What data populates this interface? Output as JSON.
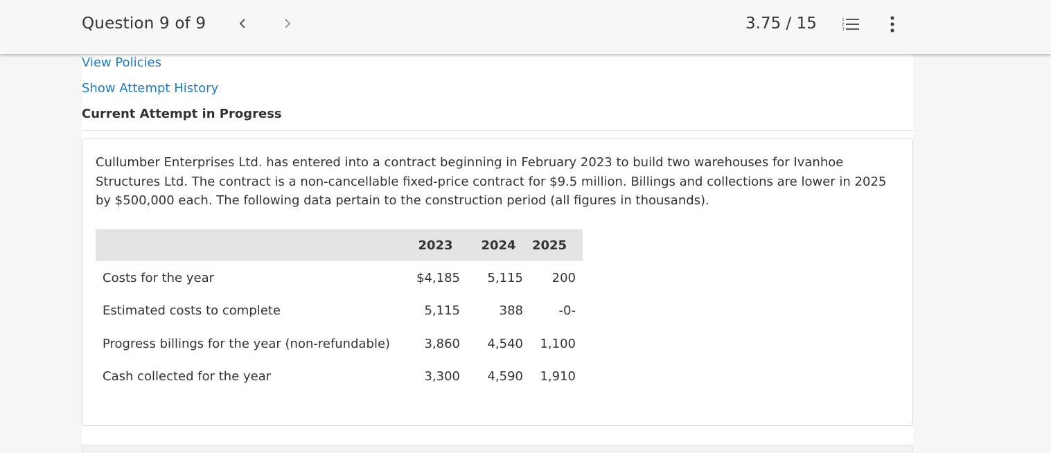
{
  "header": {
    "question_label": "Question 9 of 9",
    "score": "3.75 / 15",
    "prev_icon": "chevron-left-icon",
    "next_icon": "chevron-right-icon",
    "list_icon": "numbered-list-icon",
    "menu_icon": "vertical-ellipsis-icon"
  },
  "links": {
    "view_policies": "View Policies",
    "show_attempt_history": "Show Attempt History"
  },
  "attempt_status": "Current Attempt in Progress",
  "question": {
    "text": "Cullumber Enterprises Ltd. has entered into a contract beginning in February 2023 to build two warehouses for Ivanhoe Structures Ltd. The contract is a non-cancellable fixed-price contract for $9.5 million. Billings and collections are lower in 2025 by $500,000 each. The following data pertain to the construction period (all figures in thousands).",
    "table": {
      "headers": [
        "",
        "2023",
        "2024",
        "2025"
      ],
      "rows": [
        {
          "label": "Costs for the year",
          "values": [
            "$4,185",
            "5,115",
            "200"
          ]
        },
        {
          "label": "Estimated costs to complete",
          "values": [
            "5,115",
            "388",
            "-0-"
          ]
        },
        {
          "label": "Progress billings for the year (non-refundable)",
          "values": [
            "3,860",
            "4,540",
            "1,100"
          ]
        },
        {
          "label": "Cash collected for the year",
          "values": [
            "3,300",
            "4,590",
            "1,910"
          ]
        }
      ]
    }
  },
  "colors": {
    "link": "#1d7ac9",
    "text": "#333333",
    "table_header_bg": "#e4e4e4"
  }
}
